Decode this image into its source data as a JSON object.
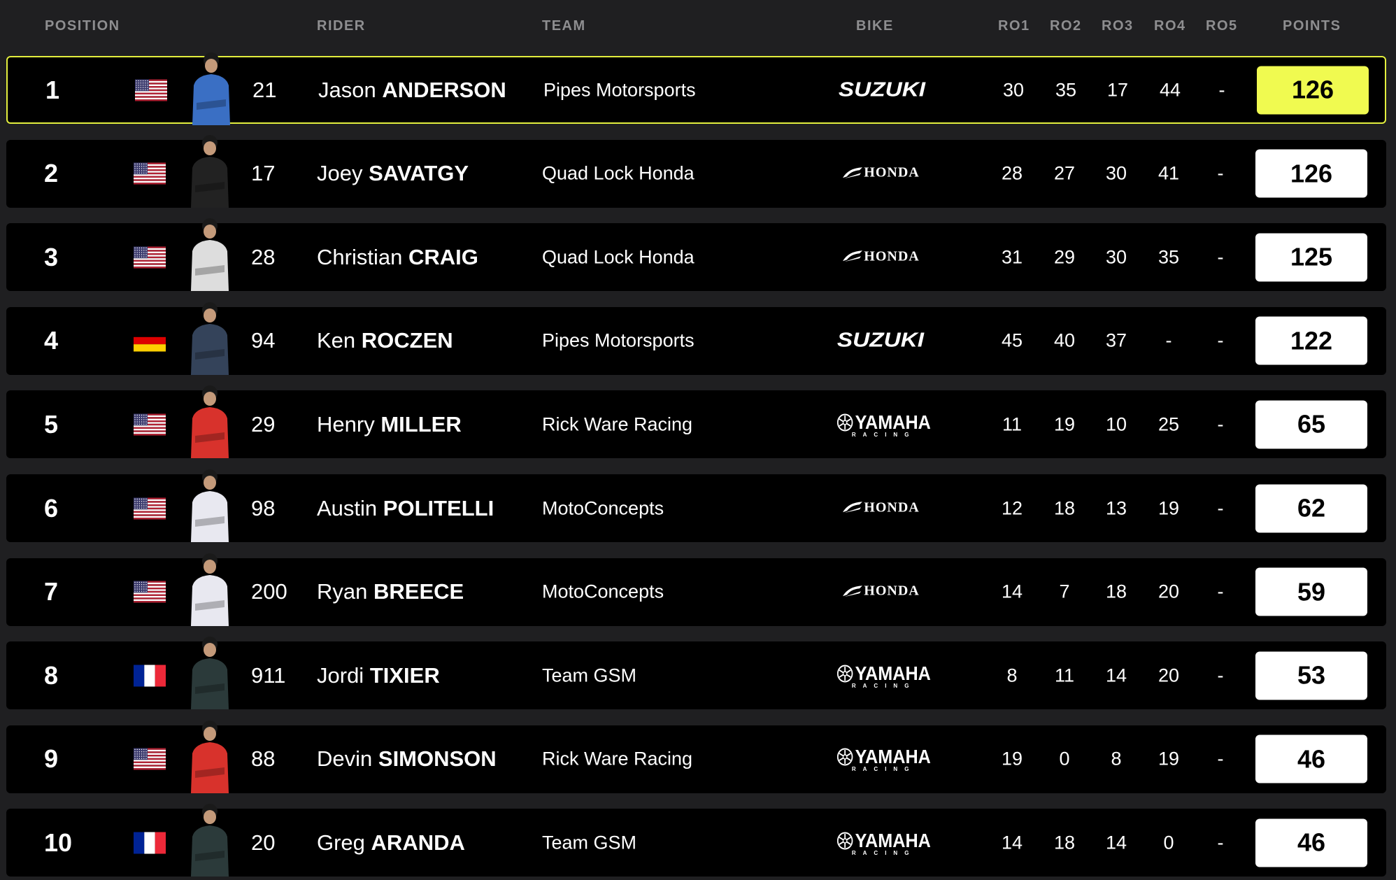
{
  "headers": {
    "position": "POSITION",
    "rider": "RIDER",
    "team": "TEAM",
    "bike": "BIKE",
    "r1": "RO1",
    "r2": "RO2",
    "r3": "RO3",
    "r4": "RO4",
    "r5": "RO5",
    "points": "POINTS"
  },
  "colors": {
    "leader_accent": "#f0fa50",
    "row_bg": "#000000",
    "page_bg": "#1f1f21"
  },
  "rows": [
    {
      "pos": "1",
      "flag": "usa",
      "number": "21",
      "first": "Jason",
      "last": "ANDERSON",
      "team": "Pipes Motorsports",
      "bike": "SUZUKI",
      "rounds": [
        "30",
        "35",
        "17",
        "44",
        "-"
      ],
      "points": "126",
      "leader": true,
      "kit": "#3a6fc4"
    },
    {
      "pos": "2",
      "flag": "usa",
      "number": "17",
      "first": "Joey",
      "last": "SAVATGY",
      "team": "Quad Lock Honda",
      "bike": "HONDA",
      "rounds": [
        "28",
        "27",
        "30",
        "41",
        "-"
      ],
      "points": "126",
      "kit": "#222"
    },
    {
      "pos": "3",
      "flag": "usa",
      "number": "28",
      "first": "Christian",
      "last": "CRAIG",
      "team": "Quad Lock Honda",
      "bike": "HONDA",
      "rounds": [
        "31",
        "29",
        "30",
        "35",
        "-"
      ],
      "points": "125",
      "kit": "#ddd"
    },
    {
      "pos": "4",
      "flag": "germany",
      "number": "94",
      "first": "Ken",
      "last": "ROCZEN",
      "team": "Pipes Motorsports",
      "bike": "SUZUKI",
      "rounds": [
        "45",
        "40",
        "37",
        "-",
        "-"
      ],
      "points": "122",
      "kit": "#34435a"
    },
    {
      "pos": "5",
      "flag": "usa",
      "number": "29",
      "first": "Henry",
      "last": "MILLER",
      "team": "Rick Ware Racing",
      "bike": "YAMAHA",
      "rounds": [
        "11",
        "19",
        "10",
        "25",
        "-"
      ],
      "points": "65",
      "kit": "#d8322c"
    },
    {
      "pos": "6",
      "flag": "usa",
      "number": "98",
      "first": "Austin",
      "last": "POLITELLI",
      "team": "MotoConcepts",
      "bike": "HONDA",
      "rounds": [
        "12",
        "18",
        "13",
        "19",
        "-"
      ],
      "points": "62",
      "kit": "#e8e8f0"
    },
    {
      "pos": "7",
      "flag": "usa",
      "number": "200",
      "first": "Ryan",
      "last": "BREECE",
      "team": "MotoConcepts",
      "bike": "HONDA",
      "rounds": [
        "14",
        "7",
        "18",
        "20",
        "-"
      ],
      "points": "59",
      "kit": "#e8e8f0"
    },
    {
      "pos": "8",
      "flag": "france",
      "number": "911",
      "first": "Jordi",
      "last": "TIXIER",
      "team": "Team GSM",
      "bike": "YAMAHA",
      "rounds": [
        "8",
        "11",
        "14",
        "20",
        "-"
      ],
      "points": "53",
      "kit": "#2b3a3a"
    },
    {
      "pos": "9",
      "flag": "usa",
      "number": "88",
      "first": "Devin",
      "last": "SIMONSON",
      "team": "Rick Ware Racing",
      "bike": "YAMAHA",
      "rounds": [
        "19",
        "0",
        "8",
        "19",
        "-"
      ],
      "points": "46",
      "kit": "#d8322c"
    },
    {
      "pos": "10",
      "flag": "france",
      "number": "20",
      "first": "Greg",
      "last": "ARANDA",
      "team": "Team GSM",
      "bike": "YAMAHA",
      "rounds": [
        "14",
        "18",
        "14",
        "0",
        "-"
      ],
      "points": "46",
      "kit": "#2b3a3a"
    }
  ],
  "bike_logo_sub": {
    "YAMAHA": "RACING"
  }
}
